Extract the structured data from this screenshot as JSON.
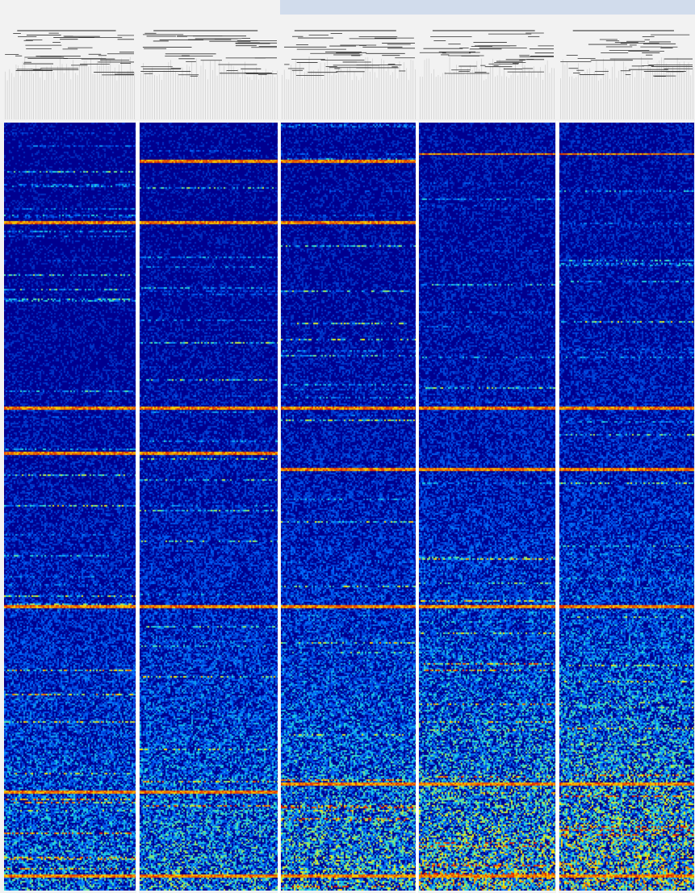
{
  "chart_data": {
    "type": "heatmap",
    "title": "",
    "xlabel": "",
    "ylabel": "",
    "color_scale": "jet",
    "colors": {
      "low": "#00008f",
      "mid_low": "#0066ff",
      "mid": "#22dddd",
      "mid_high": "#ffee00",
      "high": "#dd2200"
    },
    "legend": "none",
    "dendrogram": "top",
    "panels": [
      {
        "name": "",
        "bright_row_bands": [
          0.13,
          0.37,
          0.43,
          0.63,
          0.87,
          0.98
        ],
        "overall_intensity": 0.3
      },
      {
        "name": "",
        "bright_row_bands": [
          0.05,
          0.13,
          0.37,
          0.43,
          0.63,
          0.87,
          0.98
        ],
        "overall_intensity": 0.33
      },
      {
        "name": "",
        "bright_row_bands": [
          0.05,
          0.13,
          0.37,
          0.45,
          0.63,
          0.86,
          0.98
        ],
        "overall_intensity": 0.36
      },
      {
        "name": "",
        "bright_row_bands": [
          0.04,
          0.37,
          0.45,
          0.63,
          0.86,
          0.98
        ],
        "overall_intensity": 0.4
      },
      {
        "name": "",
        "bright_row_bands": [
          0.04,
          0.37,
          0.45,
          0.63,
          0.86,
          0.98
        ],
        "overall_intensity": 0.42
      }
    ]
  }
}
